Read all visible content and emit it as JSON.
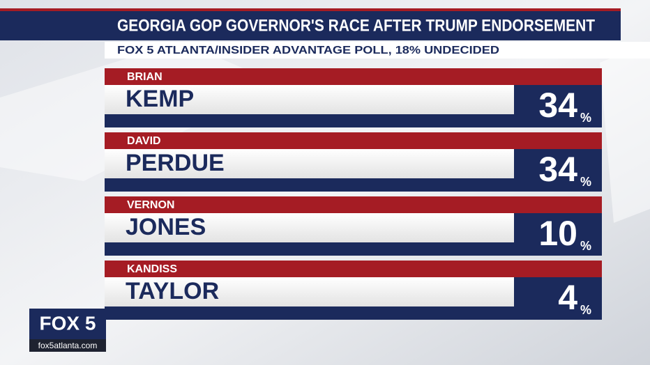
{
  "title": "GEORGIA GOP GOVERNOR'S RACE AFTER TRUMP ENDORSEMENT",
  "subtitle": "FOX 5 ATLANTA/INSIDER ADVANTAGE POLL, 18% UNDECIDED",
  "percent_sign": "%",
  "candidates": [
    {
      "first": "BRIAN",
      "last": "KEMP",
      "percent": 34
    },
    {
      "first": "DAVID",
      "last": "PERDUE",
      "percent": 34
    },
    {
      "first": "VERNON",
      "last": "JONES",
      "percent": 10
    },
    {
      "first": "KANDISS",
      "last": "TAYLOR",
      "percent": 4
    }
  ],
  "logo": {
    "brand": "FOX 5",
    "url": "fox5atlanta.com"
  }
}
